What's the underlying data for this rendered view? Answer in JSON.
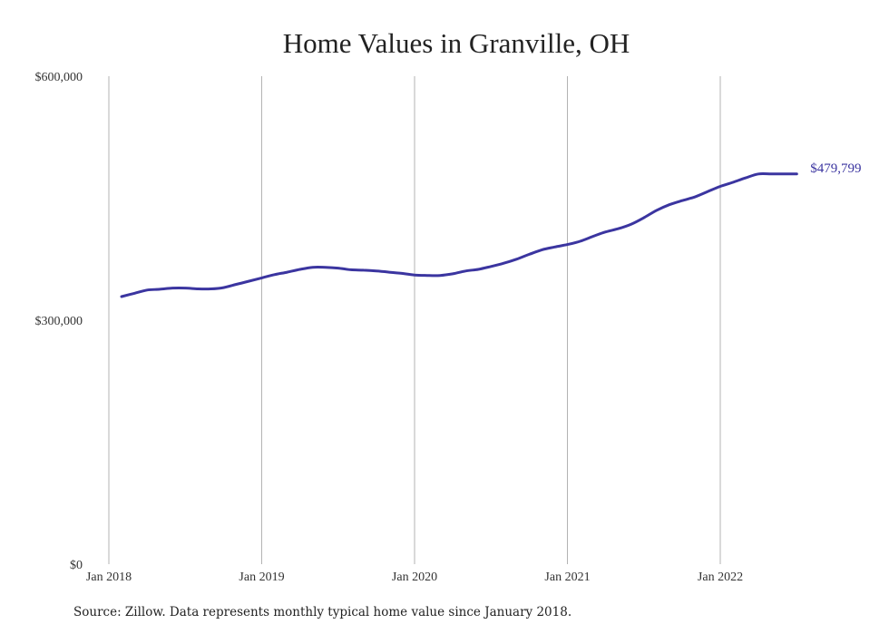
{
  "chart_data": {
    "type": "line",
    "title": "Home Values in Granville, OH",
    "xlabel": "",
    "ylabel": "",
    "x_tick_labels": [
      "Jan 2018",
      "Jan 2019",
      "Jan 2020",
      "Jan 2021",
      "Jan 2022"
    ],
    "y_tick_labels": [
      "$0",
      "$300,000",
      "$600,000"
    ],
    "y_ticks": [
      0,
      300000,
      600000
    ],
    "ylim": [
      0,
      600000
    ],
    "xlim": [
      "2018-01",
      "2022-07"
    ],
    "grid": {
      "vertical": true,
      "horizontal": false
    },
    "series": [
      {
        "color": "#3b35a0",
        "x": [
          "2018-02",
          "2018-03",
          "2018-04",
          "2018-05",
          "2018-06",
          "2018-07",
          "2018-08",
          "2018-09",
          "2018-10",
          "2018-11",
          "2018-12",
          "2019-01",
          "2019-02",
          "2019-03",
          "2019-04",
          "2019-05",
          "2019-06",
          "2019-07",
          "2019-08",
          "2019-09",
          "2019-10",
          "2019-11",
          "2019-12",
          "2020-01",
          "2020-02",
          "2020-03",
          "2020-04",
          "2020-05",
          "2020-06",
          "2020-07",
          "2020-08",
          "2020-09",
          "2020-10",
          "2020-11",
          "2020-12",
          "2021-01",
          "2021-02",
          "2021-03",
          "2021-04",
          "2021-05",
          "2021-06",
          "2021-07",
          "2021-08",
          "2021-09",
          "2021-10",
          "2021-11",
          "2021-12",
          "2022-01",
          "2022-02",
          "2022-03",
          "2022-04",
          "2022-05",
          "2022-06",
          "2022-07"
        ],
        "values": [
          329000,
          333000,
          337000,
          338000,
          339500,
          339500,
          338500,
          338500,
          340000,
          344000,
          348000,
          352000,
          356000,
          359000,
          362500,
          365000,
          365000,
          364000,
          362000,
          361500,
          360500,
          359000,
          357500,
          355500,
          355000,
          355000,
          357000,
          360500,
          362500,
          366000,
          370000,
          375000,
          381000,
          386500,
          390000,
          393000,
          397000,
          403000,
          408500,
          412500,
          418000,
          426000,
          435000,
          442000,
          447000,
          451500,
          458000,
          464500,
          469500,
          475000,
          479799,
          479799,
          479799,
          479799
        ],
        "end_label": "$479,799"
      }
    ]
  },
  "source": "Source: Zillow. Data represents monthly typical home value since January 2018."
}
